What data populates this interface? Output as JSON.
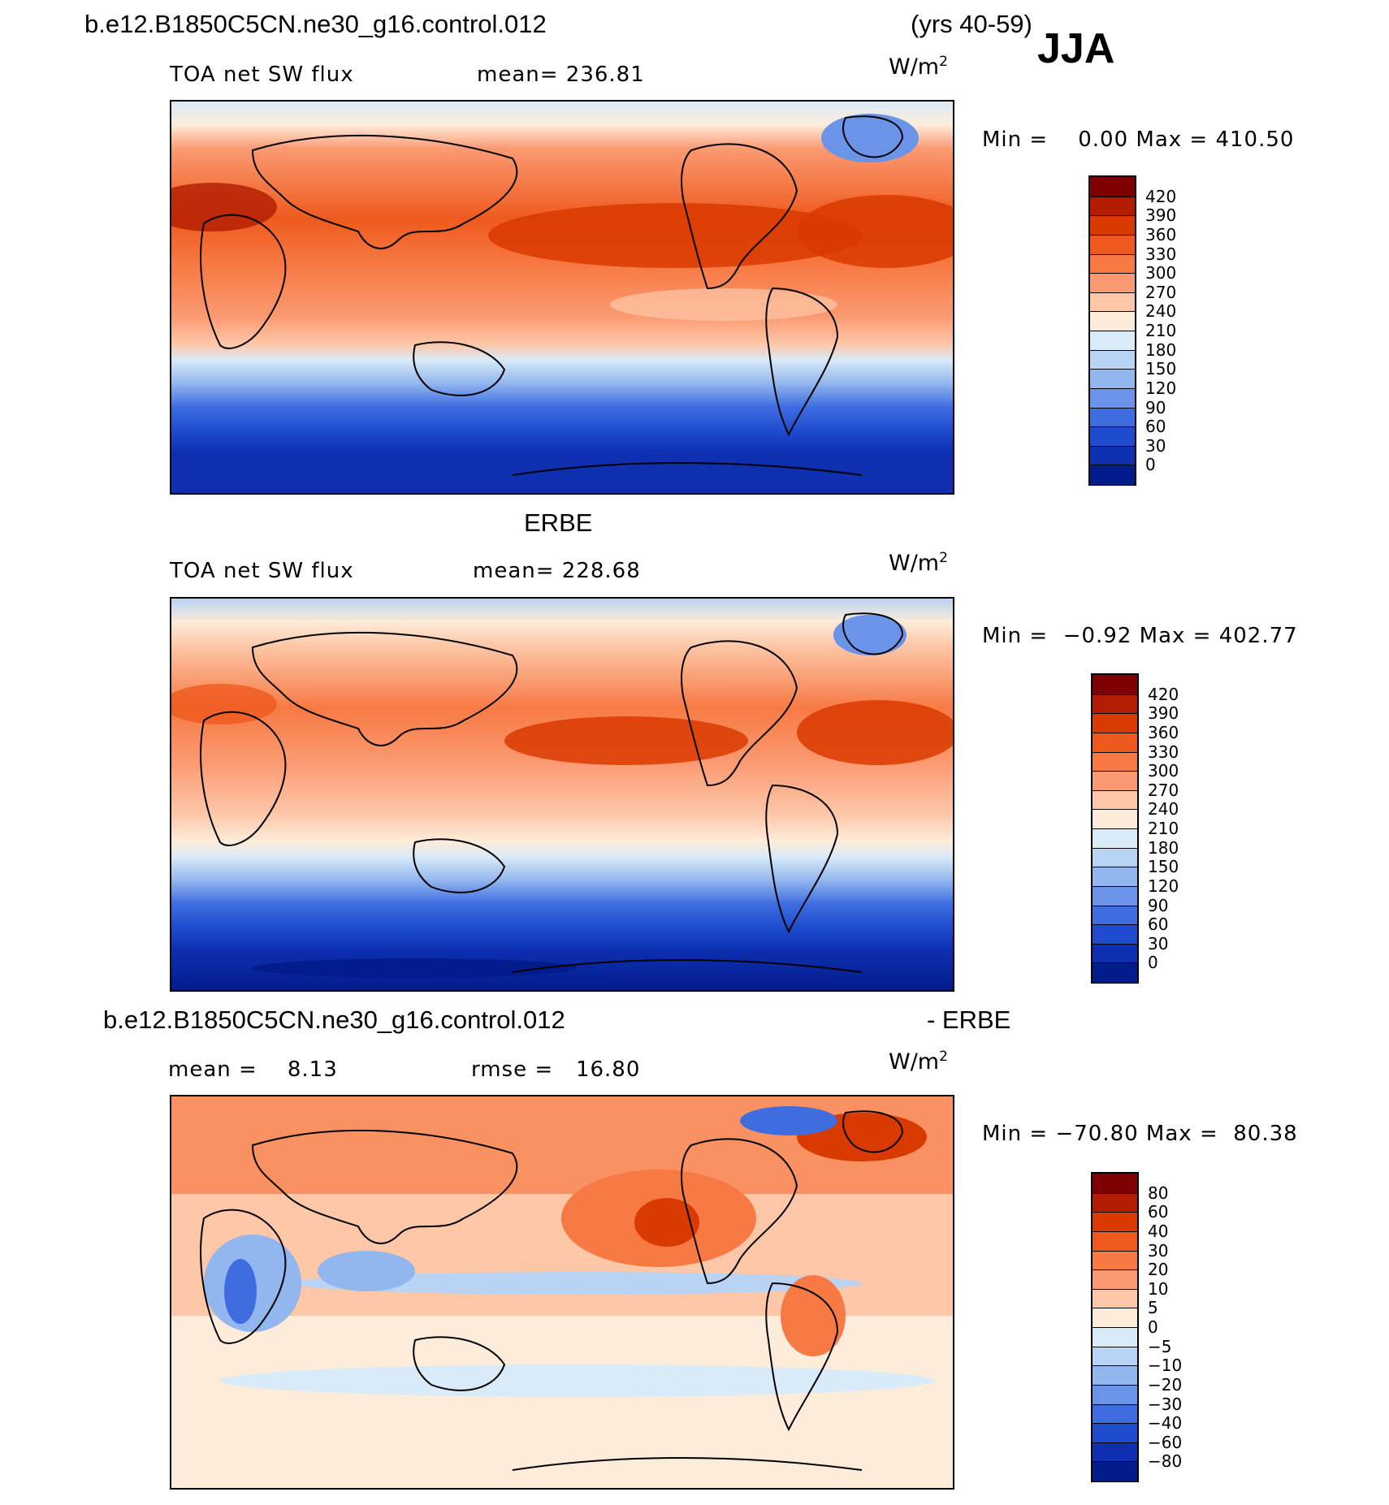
{
  "header": {
    "case_name": "b.e12.B1850C5CN.ne30_g16.control.012",
    "years": "(yrs 40-59)",
    "season": "JJA"
  },
  "units": {
    "base": "W/m",
    "exp": "2"
  },
  "panels": [
    {
      "id": "model",
      "field": "TOA net SW flux",
      "stat_text": "mean= 236.81",
      "minmax_text": "Min =    0.00 Max = 410.50",
      "colorbar_labels": [
        "420",
        "390",
        "360",
        "330",
        "300",
        "270",
        "240",
        "210",
        "180",
        "150",
        "120",
        "90",
        "60",
        "30",
        "0"
      ]
    },
    {
      "id": "obs",
      "title": "ERBE",
      "field": "TOA net SW flux",
      "stat_text": "mean= 228.68",
      "minmax_text": "Min =  −0.92 Max = 402.77",
      "colorbar_labels": [
        "420",
        "390",
        "360",
        "330",
        "300",
        "270",
        "240",
        "210",
        "180",
        "150",
        "120",
        "90",
        "60",
        "30",
        "0"
      ]
    },
    {
      "id": "diff",
      "title_left": "b.e12.B1850C5CN.ne30_g16.control.012",
      "title_right": "- ERBE",
      "mean_text": "mean =    8.13",
      "rmse_text": "rmse =   16.80",
      "minmax_text": "Min = −70.80 Max =  80.38",
      "colorbar_labels": [
        "80",
        "60",
        "40",
        "30",
        "20",
        "10",
        "5",
        "0",
        "−5",
        "−10",
        "−20",
        "−30",
        "−40",
        "−60",
        "−80"
      ]
    }
  ],
  "colors": {
    "abs_scale": [
      "#7f0000",
      "#b21c00",
      "#d93a00",
      "#ee5a1e",
      "#f77a44",
      "#fb9a72",
      "#fdc7a8",
      "#fdecd9",
      "#d9eaf8",
      "#b8d3f3",
      "#92b6ee",
      "#6b93e8",
      "#3f6de0",
      "#1f4ccf",
      "#0d2fb0",
      "#031c8c"
    ],
    "diff_scale": [
      "#7f0000",
      "#b21c00",
      "#d93a00",
      "#ee5a1e",
      "#f77a44",
      "#fb9a72",
      "#fdc7a8",
      "#fdecd9",
      "#d9eaf8",
      "#b8d3f3",
      "#92b6ee",
      "#6b93e8",
      "#3f6de0",
      "#1f4ccf",
      "#0d2fb0",
      "#031c8c"
    ]
  }
}
